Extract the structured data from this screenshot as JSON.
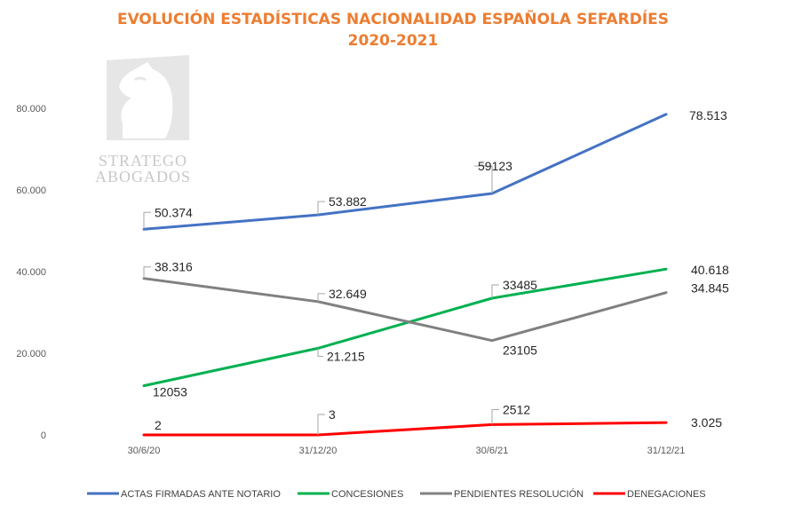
{
  "chart_data": {
    "type": "line",
    "title": "EVOLUCIÓN ESTADÍSTICAS NACIONALIDAD ESPAÑOLA SEFARDÍES",
    "subtitle": "2020-2021",
    "categories": [
      "30/6/20",
      "31/12/20",
      "30/6/21",
      "31/12/21"
    ],
    "ylim": [
      0,
      90000
    ],
    "yticks": [
      0,
      20000,
      40000,
      60000,
      80000
    ],
    "ytick_labels": [
      "0",
      "20.000",
      "40.000",
      "60.000",
      "80.000"
    ],
    "grid": false,
    "legend_position": "bottom",
    "series": [
      {
        "name": "ACTAS FIRMADAS ANTE NOTARIO",
        "color": "#4472C4",
        "values": [
          50374,
          53882,
          59123,
          78513
        ],
        "labels": [
          "50.374",
          "53.882",
          "59123",
          "78.513"
        ]
      },
      {
        "name": "CONCESIONES",
        "color": "#00B050",
        "values": [
          12053,
          21215,
          33485,
          40618
        ],
        "labels": [
          "12053",
          "21.215",
          "33485",
          "40.618"
        ]
      },
      {
        "name": "PENDIENTES RESOLUCIÓN",
        "color": "#808080",
        "values": [
          38316,
          32649,
          23105,
          34845
        ],
        "labels": [
          "38.316",
          "32.649",
          "23105",
          "34.845"
        ]
      },
      {
        "name": "DENEGACIONES",
        "color": "#FF0000",
        "values": [
          2,
          3,
          2512,
          3025
        ],
        "labels": [
          "2",
          "3",
          "2512",
          "3.025"
        ]
      }
    ]
  },
  "watermark": {
    "line1": "STRATEGO",
    "line2": "ABOGADOS"
  }
}
